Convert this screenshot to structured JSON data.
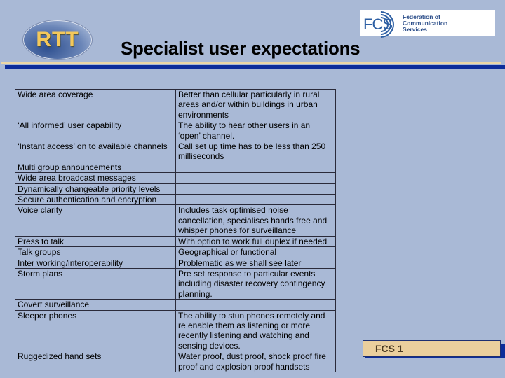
{
  "header": {
    "title": "Specialist user expectations",
    "rtt_logo": "RTT",
    "fcs_logo": {
      "mark": "FCS",
      "name_lines": [
        "Federation of",
        "Communication",
        "Services"
      ]
    }
  },
  "table": {
    "rows": [
      {
        "requirement": "Wide area coverage",
        "detail": "Better than cellular particularly in rural areas and/or within buildings in urban environments"
      },
      {
        "requirement": "‘All informed’ user capability",
        "detail": "The ability to hear other users in an ‘open’ channel."
      },
      {
        "requirement": "‘Instant access’ on to available channels",
        "detail": "Call set up time has to be less than 250 milliseconds"
      },
      {
        "requirement": "Multi group announcements",
        "detail": ""
      },
      {
        "requirement": "Wide area broadcast messages",
        "detail": ""
      },
      {
        "requirement": "Dynamically changeable priority levels",
        "detail": ""
      },
      {
        "requirement": "Secure authentication and encryption",
        "detail": ""
      },
      {
        "requirement": "Voice clarity",
        "detail": "Includes task optimised noise cancellation, specialises hands free and whisper phones for surveillance"
      },
      {
        "requirement": "Press to talk",
        "detail": "With option to work full duplex if needed"
      },
      {
        "requirement": "Talk groups",
        "detail": "Geographical or functional"
      },
      {
        "requirement": "Inter working/interoperability",
        "detail": "Problematic as we shall see later"
      },
      {
        "requirement": "Storm plans",
        "detail": "Pre set response to particular events including disaster recovery contingency planning."
      },
      {
        "requirement": "Covert surveillance",
        "detail": ""
      },
      {
        "requirement": "Sleeper phones",
        "detail": "The ability to stun phones remotely and re enable them as listening or more recently listening and watching and sensing devices."
      },
      {
        "requirement": "Ruggedized hand sets",
        "detail": "Water proof, dust proof, shock proof fire proof and explosion proof handsets"
      }
    ]
  },
  "footer": {
    "label": "FCS 1"
  },
  "colors": {
    "background": "#a9b9d6",
    "accent_beige": "#ecd7a6",
    "accent_blue": "#0d2d9a"
  }
}
